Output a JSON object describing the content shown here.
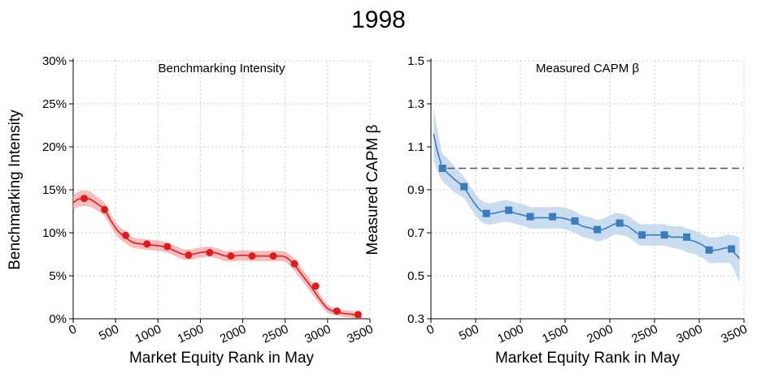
{
  "figure": {
    "title": "1998"
  },
  "chart_data": [
    {
      "type": "line",
      "title": "Benchmarking Intensity",
      "xlabel": "Market Equity Rank in May",
      "ylabel": "Benchmarking Intensity",
      "xlim": [
        0,
        3500
      ],
      "ylim": [
        0,
        30
      ],
      "x_ticks": [
        0,
        500,
        1000,
        1500,
        2000,
        2500,
        3000,
        3500
      ],
      "x_tick_labels": [
        "0",
        "500",
        "1000",
        "1500",
        "2000",
        "2500",
        "3000",
        "3500"
      ],
      "y_ticks": [
        0,
        5,
        10,
        15,
        20,
        25,
        30
      ],
      "y_tick_labels": [
        "0%",
        "5%",
        "10%",
        "15%",
        "20%",
        "25%",
        "30%"
      ],
      "grid": true,
      "color": "#e31a1c",
      "band_color": "#f4a6a6",
      "marker": "circle",
      "curve": {
        "x": [
          0,
          60,
          130,
          200,
          280,
          370,
          440,
          520,
          600,
          700,
          800,
          900,
          1000,
          1100,
          1200,
          1300,
          1400,
          1500,
          1600,
          1700,
          1800,
          1900,
          2000,
          2100,
          2200,
          2300,
          2400,
          2500,
          2600,
          2700,
          2800,
          2900,
          3000,
          3100,
          3200,
          3300,
          3400
        ],
        "y": [
          13.5,
          13.9,
          14.0,
          13.9,
          13.4,
          12.7,
          11.5,
          10.3,
          9.6,
          8.9,
          8.7,
          8.6,
          8.5,
          8.3,
          7.9,
          7.5,
          7.5,
          7.7,
          7.8,
          7.6,
          7.3,
          7.3,
          7.4,
          7.3,
          7.3,
          7.3,
          7.3,
          7.2,
          6.4,
          5.1,
          3.8,
          2.4,
          1.2,
          0.8,
          0.6,
          0.5,
          0.1
        ],
        "lower": [
          12.7,
          13.0,
          13.1,
          13.0,
          12.6,
          11.9,
          10.8,
          9.6,
          8.9,
          8.3,
          8.1,
          8.0,
          7.9,
          7.7,
          7.3,
          6.9,
          6.9,
          7.1,
          7.2,
          7.0,
          6.7,
          6.7,
          6.8,
          6.7,
          6.7,
          6.7,
          6.7,
          6.6,
          5.7,
          4.4,
          3.1,
          1.8,
          0.7,
          0.4,
          0.2,
          0.1,
          0.0
        ],
        "upper": [
          14.3,
          14.8,
          14.9,
          14.8,
          14.2,
          13.5,
          12.2,
          11.0,
          10.3,
          9.5,
          9.3,
          9.2,
          9.1,
          8.9,
          8.5,
          8.1,
          8.1,
          8.3,
          8.4,
          8.2,
          7.9,
          7.9,
          8.0,
          7.9,
          7.9,
          7.9,
          7.9,
          7.8,
          7.1,
          5.8,
          4.5,
          3.0,
          1.7,
          1.2,
          1.0,
          0.9,
          0.4
        ]
      },
      "points": {
        "x": [
          130,
          370,
          620,
          870,
          1110,
          1360,
          1610,
          1860,
          2110,
          2360,
          2610,
          2860,
          3110,
          3360
        ],
        "y": [
          14.0,
          12.7,
          9.7,
          8.7,
          8.4,
          7.4,
          7.7,
          7.3,
          7.3,
          7.3,
          6.4,
          3.8,
          0.9,
          0.5
        ]
      }
    },
    {
      "type": "line",
      "title": "Measured CAPM β",
      "xlabel": "Market Equity Rank in May",
      "ylabel": "Measured CAPM β",
      "xlim": [
        0,
        3500
      ],
      "ylim": [
        0.3,
        1.5
      ],
      "x_ticks": [
        0,
        500,
        1000,
        1500,
        2000,
        2500,
        3000,
        3500
      ],
      "x_tick_labels": [
        "0",
        "500",
        "1000",
        "1500",
        "2000",
        "2500",
        "3000",
        "3500"
      ],
      "y_ticks": [
        0.3,
        0.5,
        0.7,
        0.9,
        1.1,
        1.3,
        1.5
      ],
      "y_tick_labels": [
        "0.3",
        "0.5",
        "0.7",
        "0.9",
        "1.1",
        "1.3",
        "1.5"
      ],
      "grid": true,
      "reference_line": 1.0,
      "color": "#3a7dbf",
      "band_color": "#b7d0eb",
      "marker": "square",
      "curve": {
        "x": [
          30,
          60,
          100,
          130,
          180,
          260,
          370,
          450,
          540,
          620,
          700,
          800,
          870,
          950,
          1050,
          1110,
          1200,
          1300,
          1360,
          1450,
          1550,
          1610,
          1700,
          1800,
          1860,
          1950,
          2050,
          2110,
          2200,
          2300,
          2360,
          2450,
          2550,
          2610,
          2700,
          2800,
          2860,
          2950,
          3050,
          3110,
          3200,
          3300,
          3360,
          3450
        ],
        "y": [
          1.16,
          1.1,
          1.04,
          1.0,
          0.98,
          0.95,
          0.91,
          0.86,
          0.81,
          0.79,
          0.79,
          0.8,
          0.8,
          0.79,
          0.78,
          0.77,
          0.77,
          0.77,
          0.77,
          0.77,
          0.76,
          0.75,
          0.73,
          0.72,
          0.71,
          0.72,
          0.74,
          0.74,
          0.73,
          0.7,
          0.69,
          0.69,
          0.69,
          0.69,
          0.68,
          0.68,
          0.67,
          0.66,
          0.64,
          0.62,
          0.62,
          0.63,
          0.62,
          0.58
        ]
      },
      "band": {
        "x": [
          30,
          60,
          100,
          130,
          180,
          260,
          370,
          450,
          540,
          620,
          700,
          800,
          870,
          950,
          1050,
          1110,
          1200,
          1300,
          1360,
          1450,
          1550,
          1610,
          1700,
          1800,
          1860,
          1950,
          2050,
          2110,
          2200,
          2300,
          2360,
          2450,
          2550,
          2610,
          2700,
          2800,
          2860,
          2950,
          3050,
          3110,
          3200,
          3300,
          3360,
          3450
        ],
        "lower": [
          1.04,
          1.0,
          0.96,
          0.94,
          0.92,
          0.89,
          0.86,
          0.81,
          0.76,
          0.74,
          0.74,
          0.75,
          0.75,
          0.74,
          0.73,
          0.72,
          0.72,
          0.72,
          0.72,
          0.72,
          0.71,
          0.7,
          0.68,
          0.67,
          0.66,
          0.67,
          0.69,
          0.69,
          0.68,
          0.65,
          0.64,
          0.64,
          0.64,
          0.64,
          0.63,
          0.62,
          0.61,
          0.6,
          0.58,
          0.56,
          0.56,
          0.56,
          0.55,
          0.47
        ],
        "upper": [
          1.28,
          1.21,
          1.12,
          1.07,
          1.05,
          1.01,
          0.96,
          0.91,
          0.86,
          0.84,
          0.84,
          0.85,
          0.85,
          0.84,
          0.83,
          0.82,
          0.82,
          0.82,
          0.82,
          0.82,
          0.81,
          0.8,
          0.78,
          0.77,
          0.76,
          0.77,
          0.79,
          0.79,
          0.78,
          0.75,
          0.74,
          0.74,
          0.74,
          0.74,
          0.73,
          0.73,
          0.72,
          0.71,
          0.69,
          0.68,
          0.68,
          0.69,
          0.69,
          0.68
        ]
      },
      "points": {
        "x": [
          130,
          370,
          620,
          870,
          1110,
          1360,
          1610,
          1860,
          2110,
          2360,
          2610,
          2860,
          3110,
          3360
        ],
        "y": [
          1.0,
          0.915,
          0.79,
          0.805,
          0.775,
          0.775,
          0.755,
          0.715,
          0.745,
          0.69,
          0.69,
          0.68,
          0.62,
          0.625
        ]
      }
    }
  ]
}
